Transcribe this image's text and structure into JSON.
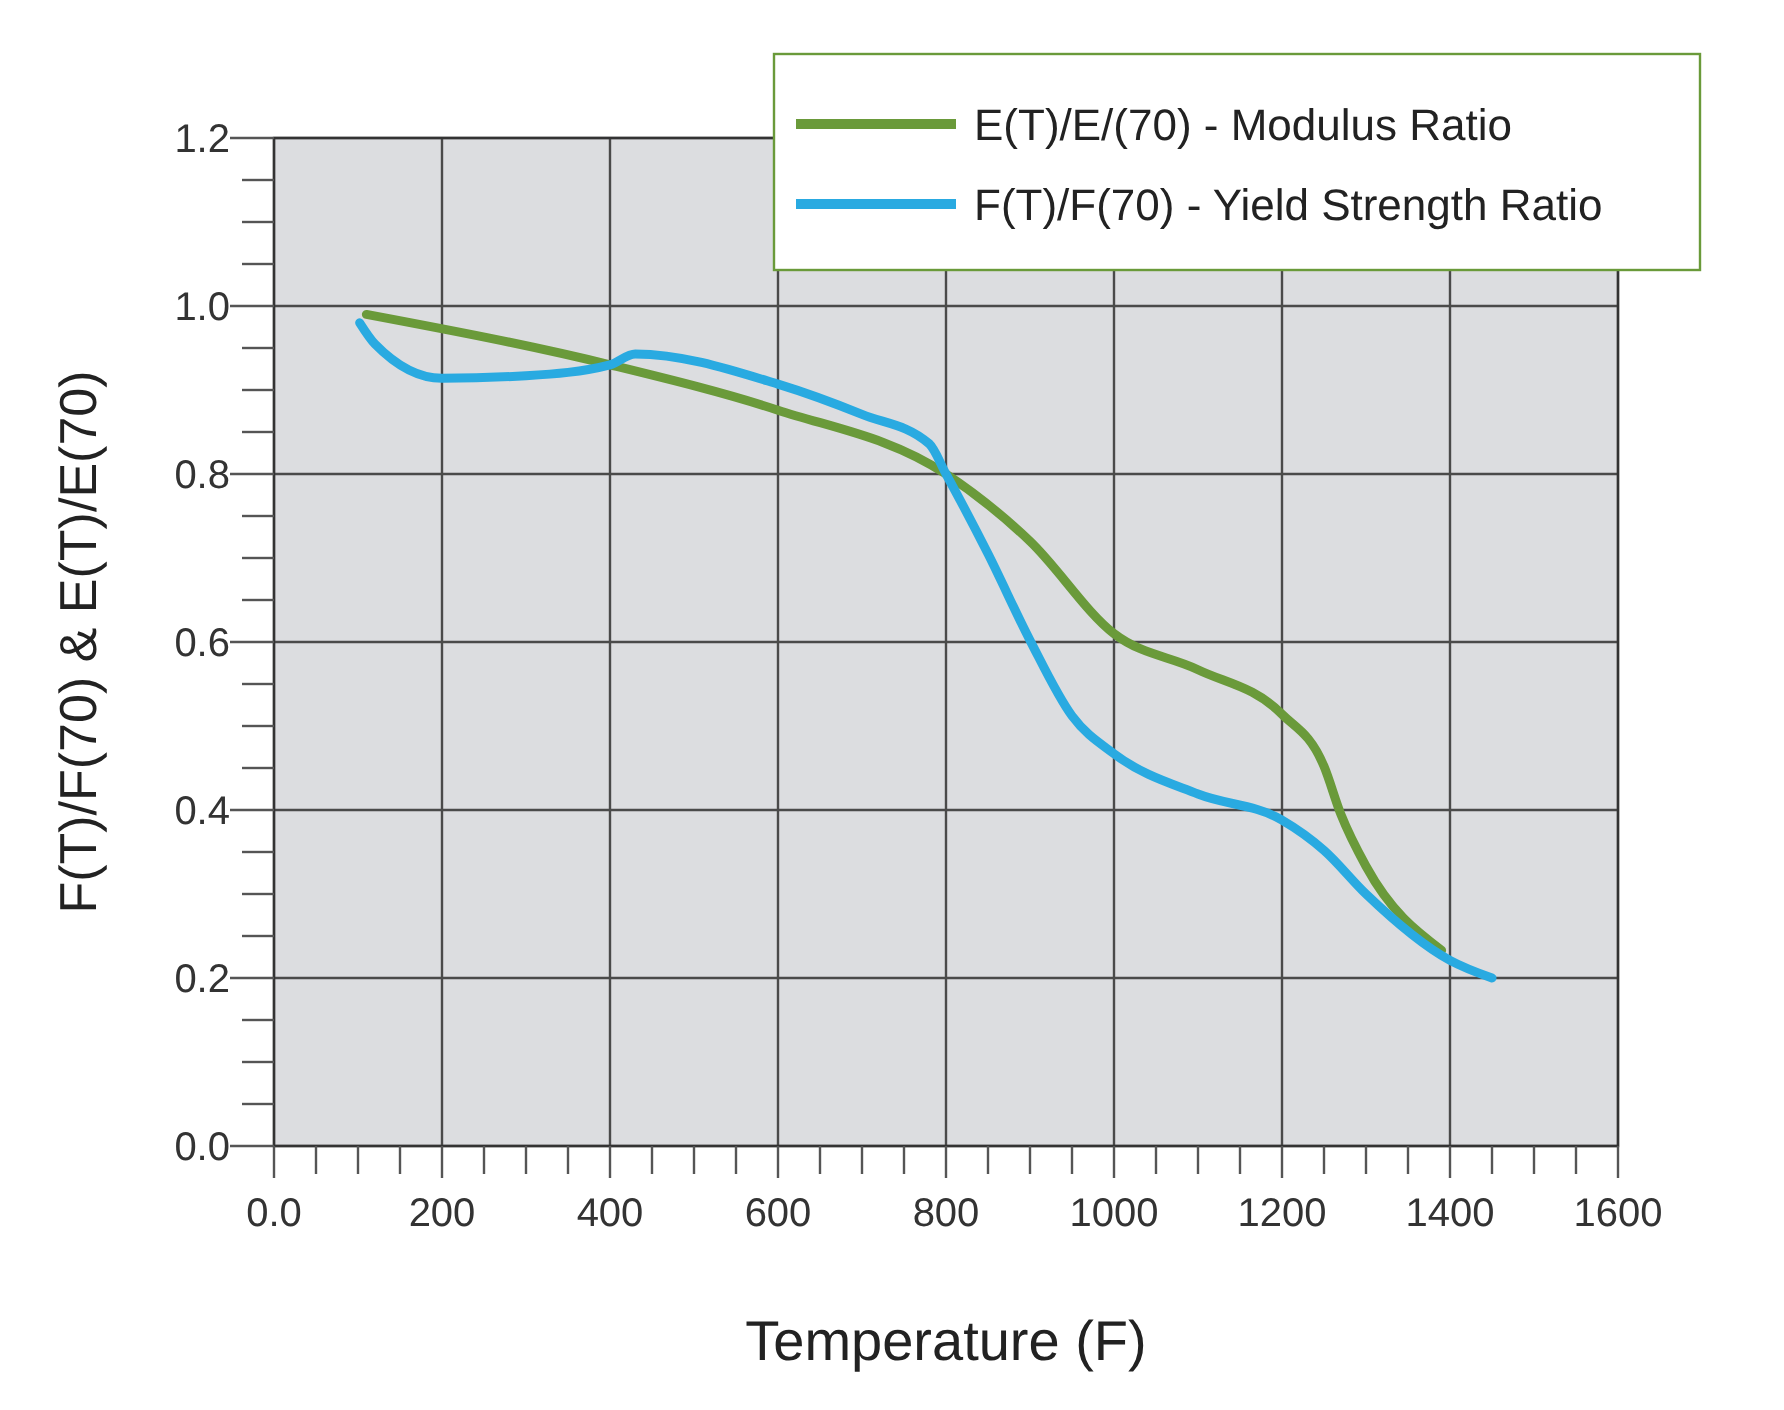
{
  "chart_data": {
    "type": "line",
    "xlabel": "Temperature (F)",
    "ylabel": "F(T)/F(70) & E(T)/E(70)",
    "xlim": [
      0,
      1600
    ],
    "ylim": [
      0,
      1.2
    ],
    "xticks": [
      {
        "value": 0,
        "label": "0.0"
      },
      {
        "value": 50,
        "label": null
      },
      {
        "value": 100,
        "label": null
      },
      {
        "value": 150,
        "label": null
      },
      200,
      {
        "value": 250,
        "label": null
      },
      {
        "value": 300,
        "label": null
      },
      {
        "value": 350,
        "label": null
      },
      400,
      {
        "value": 450,
        "label": null
      },
      {
        "value": 500,
        "label": null
      },
      {
        "value": 550,
        "label": null
      },
      600,
      {
        "value": 650,
        "label": null
      },
      {
        "value": 700,
        "label": null
      },
      {
        "value": 750,
        "label": null
      },
      800,
      {
        "value": 850,
        "label": null
      },
      {
        "value": 900,
        "label": null
      },
      {
        "value": 950,
        "label": null
      },
      1000,
      {
        "value": 1050,
        "label": null
      },
      {
        "value": 1100,
        "label": null
      },
      {
        "value": 1150,
        "label": null
      },
      1200,
      {
        "value": 1250,
        "label": null
      },
      {
        "value": 1300,
        "label": null
      },
      {
        "value": 1350,
        "label": null
      },
      1400,
      {
        "value": 1450,
        "label": null
      },
      {
        "value": 1500,
        "label": null
      },
      {
        "value": 1550,
        "label": null
      },
      1600
    ],
    "yticks": [
      {
        "value": 0,
        "label": "0.0"
      },
      {
        "value": 0.05,
        "label": null
      },
      {
        "value": 0.1,
        "label": null
      },
      {
        "value": 0.15,
        "label": null
      },
      {
        "value": 0.2,
        "label": "0.2"
      },
      {
        "value": 0.25,
        "label": null
      },
      {
        "value": 0.3,
        "label": null
      },
      {
        "value": 0.35,
        "label": null
      },
      {
        "value": 0.4,
        "label": "0.4"
      },
      {
        "value": 0.45,
        "label": null
      },
      {
        "value": 0.5,
        "label": null
      },
      {
        "value": 0.55,
        "label": null
      },
      {
        "value": 0.6,
        "label": "0.6"
      },
      {
        "value": 0.65,
        "label": null
      },
      {
        "value": 0.7,
        "label": null
      },
      {
        "value": 0.75,
        "label": null
      },
      {
        "value": 0.8,
        "label": "0.8"
      },
      {
        "value": 0.85,
        "label": null
      },
      {
        "value": 0.9,
        "label": null
      },
      {
        "value": 0.95,
        "label": null
      },
      {
        "value": 1,
        "label": "1.0"
      },
      {
        "value": 1.05,
        "label": null
      },
      {
        "value": 1.1,
        "label": null
      },
      {
        "value": 1.15,
        "label": null
      },
      {
        "value": 1.2,
        "label": "1.2"
      }
    ],
    "grid": true,
    "legend": "top right",
    "marker": "none",
    "line_style": "solid",
    "series": [
      {
        "name": "E(T)/E/(70) - Modulus Ratio",
        "color": "#6a9a3a",
        "x": [
          110,
          400,
          600,
          800,
          900,
          1000,
          1100,
          1200,
          1250,
          1270,
          1300,
          1390
        ],
        "values": [
          0.99,
          0.93,
          0.876,
          0.8,
          0.72,
          0.61,
          0.567,
          0.514,
          0.452,
          0.395,
          0.333,
          0.233
        ]
      },
      {
        "name": "F(T)/F(70) - Yield Strength Ratio",
        "color": "#29aae1",
        "x": [
          102,
          120,
          200,
          300,
          400,
          430,
          600,
          700,
          780,
          800,
          850,
          900,
          950,
          1000,
          1100,
          1200,
          1250,
          1300,
          1400,
          1450
        ],
        "values": [
          0.98,
          0.955,
          0.914,
          0.917,
          0.93,
          0.943,
          0.907,
          0.871,
          0.836,
          0.8,
          0.705,
          0.602,
          0.512,
          0.467,
          0.419,
          0.388,
          0.352,
          0.3,
          0.221,
          0.2
        ]
      }
    ]
  }
}
